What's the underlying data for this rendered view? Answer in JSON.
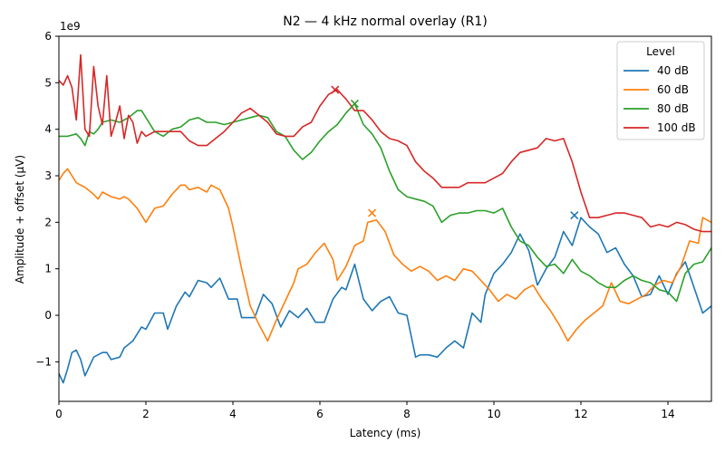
{
  "chart_data": {
    "type": "line",
    "title": "N2 — 4 kHz normal overlay (R1)",
    "xlabel": "Latency (ms)",
    "ylabel": "Amplitude + offset (µV)",
    "y_scale_label": "1e9",
    "xlim": [
      0,
      15
    ],
    "ylim": [
      -1.85,
      6.0
    ],
    "y_units_multiplier": 1000000000,
    "x_ticks": [
      0,
      2,
      4,
      6,
      8,
      10,
      12,
      14
    ],
    "y_ticks": [
      -1,
      0,
      1,
      2,
      3,
      4,
      5,
      6
    ],
    "grid": false,
    "legend": {
      "title": "Level",
      "position": "top-right"
    },
    "series": [
      {
        "name": "40 dB",
        "color": "#1f77b4",
        "x": [
          0,
          0.1,
          0.2,
          0.3,
          0.4,
          0.5,
          0.6,
          0.7,
          0.8,
          1.0,
          1.1,
          1.2,
          1.4,
          1.5,
          1.7,
          1.9,
          2.0,
          2.2,
          2.4,
          2.5,
          2.7,
          2.9,
          3.0,
          3.2,
          3.4,
          3.5,
          3.7,
          3.9,
          4.1,
          4.2,
          4.4,
          4.5,
          4.7,
          4.9,
          5.1,
          5.3,
          5.5,
          5.7,
          5.9,
          6.1,
          6.3,
          6.5,
          6.6,
          6.8,
          7.0,
          7.2,
          7.4,
          7.6,
          7.8,
          8.0,
          8.2,
          8.3,
          8.5,
          8.7,
          8.9,
          9.1,
          9.3,
          9.5,
          9.7,
          9.8,
          10.0,
          10.2,
          10.4,
          10.6,
          10.8,
          11.0,
          11.2,
          11.4,
          11.6,
          11.8,
          12.0,
          12.2,
          12.4,
          12.6,
          12.8,
          13.0,
          13.2,
          13.4,
          13.6,
          13.8,
          14.0,
          14.2,
          14.4,
          14.6,
          14.8,
          15.0
        ],
        "y": [
          -1.25,
          -1.45,
          -1.15,
          -0.8,
          -0.75,
          -0.95,
          -1.3,
          -1.1,
          -0.9,
          -0.8,
          -0.8,
          -0.95,
          -0.9,
          -0.7,
          -0.55,
          -0.25,
          -0.3,
          0.05,
          0.05,
          -0.3,
          0.2,
          0.5,
          0.4,
          0.75,
          0.7,
          0.6,
          0.8,
          0.35,
          0.35,
          -0.05,
          -0.05,
          -0.05,
          0.45,
          0.25,
          -0.25,
          0.1,
          -0.05,
          0.15,
          -0.15,
          -0.15,
          0.35,
          0.6,
          0.55,
          1.1,
          0.35,
          0.1,
          0.3,
          0.4,
          0.05,
          0.0,
          -0.9,
          -0.85,
          -0.85,
          -0.9,
          -0.7,
          -0.55,
          -0.7,
          0.05,
          -0.15,
          0.45,
          0.9,
          1.1,
          1.35,
          1.75,
          1.4,
          0.65,
          1.0,
          1.25,
          1.8,
          1.5,
          2.1,
          1.9,
          1.75,
          1.35,
          1.45,
          1.1,
          0.85,
          0.4,
          0.45,
          0.85,
          0.45,
          0.9,
          1.15,
          0.6,
          0.05,
          0.2
        ]
      },
      {
        "name": "60 dB",
        "color": "#ff7f0e",
        "x": [
          0,
          0.1,
          0.2,
          0.3,
          0.4,
          0.5,
          0.6,
          0.8,
          0.9,
          1.0,
          1.1,
          1.2,
          1.4,
          1.5,
          1.6,
          1.8,
          2.0,
          2.2,
          2.4,
          2.6,
          2.8,
          2.9,
          3.0,
          3.2,
          3.4,
          3.5,
          3.7,
          3.9,
          4.0,
          4.2,
          4.4,
          4.6,
          4.8,
          5.0,
          5.2,
          5.4,
          5.5,
          5.7,
          5.9,
          6.1,
          6.3,
          6.4,
          6.6,
          6.8,
          7.0,
          7.1,
          7.3,
          7.5,
          7.7,
          7.9,
          8.1,
          8.3,
          8.5,
          8.7,
          8.9,
          9.1,
          9.3,
          9.5,
          9.7,
          9.9,
          10.1,
          10.3,
          10.5,
          10.7,
          10.9,
          11.1,
          11.3,
          11.5,
          11.7,
          11.9,
          12.1,
          12.3,
          12.5,
          12.7,
          12.9,
          13.1,
          13.3,
          13.5,
          13.7,
          13.9,
          14.1,
          14.3,
          14.5,
          14.7,
          14.8,
          15.0
        ],
        "y": [
          2.9,
          3.05,
          3.15,
          3.0,
          2.85,
          2.8,
          2.75,
          2.6,
          2.5,
          2.65,
          2.6,
          2.55,
          2.5,
          2.55,
          2.5,
          2.3,
          2.0,
          2.3,
          2.35,
          2.6,
          2.8,
          2.8,
          2.7,
          2.75,
          2.65,
          2.8,
          2.7,
          2.3,
          1.9,
          1.0,
          0.2,
          -0.2,
          -0.55,
          -0.1,
          0.3,
          0.7,
          1.0,
          1.1,
          1.35,
          1.55,
          1.2,
          0.75,
          1.05,
          1.5,
          1.6,
          2.0,
          2.05,
          1.8,
          1.3,
          1.1,
          0.95,
          1.05,
          0.95,
          0.75,
          0.85,
          0.75,
          1.0,
          0.95,
          0.75,
          0.55,
          0.3,
          0.45,
          0.35,
          0.55,
          0.65,
          0.35,
          0.1,
          -0.2,
          -0.55,
          -0.3,
          -0.1,
          0.05,
          0.2,
          0.7,
          0.3,
          0.25,
          0.35,
          0.45,
          0.65,
          0.75,
          0.7,
          1.05,
          1.6,
          1.55,
          2.1,
          2.0
        ]
      },
      {
        "name": "80 dB",
        "color": "#2ca02c",
        "x": [
          0,
          0.2,
          0.4,
          0.5,
          0.6,
          0.7,
          0.8,
          0.9,
          1.0,
          1.2,
          1.4,
          1.6,
          1.8,
          1.9,
          2.0,
          2.2,
          2.4,
          2.6,
          2.8,
          3.0,
          3.2,
          3.4,
          3.6,
          3.8,
          4.0,
          4.2,
          4.4,
          4.6,
          4.8,
          5.0,
          5.2,
          5.4,
          5.6,
          5.8,
          6.0,
          6.2,
          6.4,
          6.6,
          6.8,
          7.0,
          7.2,
          7.4,
          7.6,
          7.8,
          8.0,
          8.2,
          8.4,
          8.6,
          8.8,
          9.0,
          9.2,
          9.4,
          9.6,
          9.8,
          10.0,
          10.2,
          10.4,
          10.6,
          10.8,
          11.0,
          11.2,
          11.4,
          11.6,
          11.8,
          12.0,
          12.2,
          12.4,
          12.6,
          12.8,
          13.0,
          13.2,
          13.4,
          13.6,
          13.8,
          14.0,
          14.2,
          14.4,
          14.6,
          14.8,
          15.0
        ],
        "y": [
          3.85,
          3.85,
          3.9,
          3.8,
          3.65,
          3.95,
          3.9,
          4.0,
          4.15,
          4.2,
          4.15,
          4.25,
          4.4,
          4.4,
          4.25,
          3.95,
          3.85,
          4.0,
          4.05,
          4.2,
          4.25,
          4.15,
          4.15,
          4.1,
          4.15,
          4.2,
          4.25,
          4.3,
          4.25,
          3.95,
          3.85,
          3.55,
          3.35,
          3.5,
          3.75,
          3.95,
          4.1,
          4.35,
          4.55,
          4.1,
          3.9,
          3.6,
          3.1,
          2.7,
          2.55,
          2.5,
          2.45,
          2.35,
          2.0,
          2.15,
          2.2,
          2.2,
          2.25,
          2.25,
          2.2,
          2.3,
          1.9,
          1.6,
          1.5,
          1.25,
          1.05,
          1.1,
          0.9,
          1.2,
          0.95,
          0.85,
          0.7,
          0.6,
          0.6,
          0.75,
          0.85,
          0.75,
          0.7,
          0.55,
          0.5,
          0.3,
          0.9,
          1.1,
          1.15,
          1.45
        ]
      },
      {
        "name": "100 dB",
        "color": "#d62728",
        "x": [
          0,
          0.1,
          0.2,
          0.3,
          0.4,
          0.5,
          0.6,
          0.7,
          0.8,
          0.9,
          1.0,
          1.1,
          1.2,
          1.3,
          1.4,
          1.5,
          1.6,
          1.7,
          1.8,
          1.9,
          2.0,
          2.2,
          2.4,
          2.6,
          2.8,
          3.0,
          3.2,
          3.4,
          3.6,
          3.8,
          4.0,
          4.2,
          4.4,
          4.6,
          4.8,
          5.0,
          5.2,
          5.4,
          5.6,
          5.8,
          6.0,
          6.2,
          6.4,
          6.6,
          6.8,
          7.0,
          7.2,
          7.4,
          7.6,
          7.8,
          8.0,
          8.2,
          8.4,
          8.6,
          8.8,
          9.0,
          9.2,
          9.4,
          9.6,
          9.8,
          10.0,
          10.2,
          10.4,
          10.6,
          10.8,
          11.0,
          11.2,
          11.4,
          11.6,
          11.8,
          12.0,
          12.2,
          12.4,
          12.6,
          12.8,
          13.0,
          13.2,
          13.4,
          13.6,
          13.8,
          14.0,
          14.2,
          14.4,
          14.6,
          14.8,
          15.0
        ],
        "y": [
          5.05,
          4.95,
          5.15,
          4.9,
          4.2,
          5.6,
          4.0,
          3.85,
          5.35,
          4.5,
          4.1,
          5.15,
          3.85,
          4.15,
          4.5,
          3.8,
          4.3,
          4.15,
          3.7,
          3.95,
          3.85,
          3.95,
          3.95,
          3.95,
          3.95,
          3.75,
          3.65,
          3.65,
          3.8,
          3.95,
          4.15,
          4.35,
          4.45,
          4.3,
          4.15,
          3.9,
          3.85,
          3.85,
          4.05,
          4.15,
          4.5,
          4.75,
          4.85,
          4.65,
          4.4,
          4.4,
          4.2,
          3.95,
          3.8,
          3.75,
          3.65,
          3.3,
          3.1,
          2.95,
          2.75,
          2.75,
          2.75,
          2.85,
          2.85,
          2.85,
          2.95,
          3.05,
          3.3,
          3.5,
          3.55,
          3.6,
          3.8,
          3.75,
          3.8,
          3.3,
          2.65,
          2.1,
          2.1,
          2.15,
          2.2,
          2.2,
          2.15,
          2.1,
          1.9,
          1.95,
          1.9,
          2.0,
          1.95,
          1.85,
          1.8,
          1.8
        ]
      }
    ],
    "markers": [
      {
        "series": "40 dB",
        "x": 11.85,
        "y": 2.15,
        "symbol": "x"
      },
      {
        "series": "60 dB",
        "x": 7.2,
        "y": 2.2,
        "symbol": "x"
      },
      {
        "series": "80 dB",
        "x": 6.8,
        "y": 4.55,
        "symbol": "x"
      },
      {
        "series": "100 dB",
        "x": 6.35,
        "y": 4.85,
        "symbol": "x"
      }
    ]
  }
}
